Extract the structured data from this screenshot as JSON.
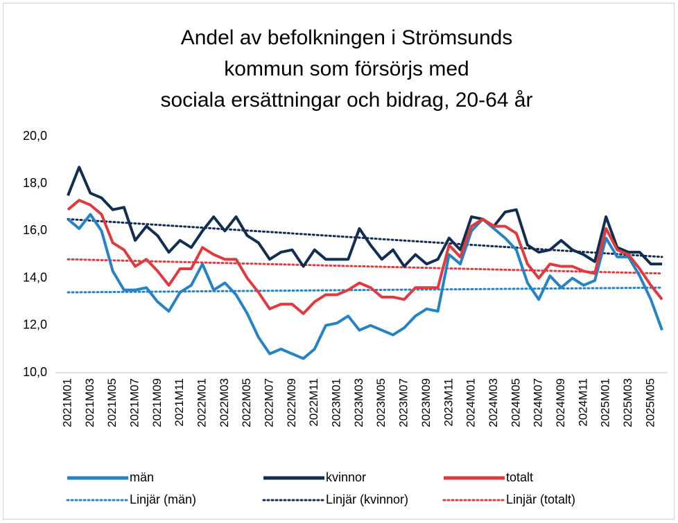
{
  "chart_data": {
    "type": "line",
    "title": [
      "Andel av befolkningen i Strömsunds",
      "kommun som försörjs med",
      "sociala ersättningar och bidrag, 20-64 år"
    ],
    "categories": [
      "2021M01",
      null,
      "2021M03",
      null,
      "2021M05",
      null,
      "2021M07",
      null,
      "2021M09",
      null,
      "2021M11",
      null,
      "2022M01",
      null,
      "2022M03",
      null,
      "2022M05",
      null,
      "2022M07",
      null,
      "2022M09",
      null,
      "2022M11",
      null,
      "2023M01",
      null,
      "2023M03",
      null,
      "2023M05",
      null,
      "2023M07",
      null,
      "2023M09",
      null,
      "2023M11",
      null,
      "2024M01",
      null,
      "2024M03",
      null,
      "2024M05",
      null,
      "2024M07",
      null,
      "2024M09",
      null,
      "2024M11",
      null,
      "2025M01",
      null,
      "2025M03",
      null,
      "2025M05",
      null
    ],
    "series": [
      {
        "name": "män",
        "color": "#2583c5",
        "values": [
          16.5,
          16.1,
          16.7,
          16.0,
          14.3,
          13.5,
          13.5,
          13.6,
          13.0,
          12.6,
          13.4,
          13.7,
          14.6,
          13.5,
          13.8,
          13.3,
          12.5,
          11.5,
          10.8,
          11.0,
          10.8,
          10.6,
          11.0,
          12.0,
          12.1,
          12.4,
          11.8,
          12.0,
          11.8,
          11.6,
          11.9,
          12.4,
          12.7,
          12.6,
          15.0,
          14.6,
          16.0,
          16.5,
          16.1,
          15.7,
          15.2,
          13.8,
          13.1,
          14.1,
          13.6,
          14.0,
          13.7,
          13.9,
          15.7,
          14.9,
          14.9,
          14.1,
          13.1,
          11.8
        ]
      },
      {
        "name": "kvinnor",
        "color": "#112d52",
        "values": [
          17.5,
          18.7,
          17.6,
          17.4,
          16.9,
          17.0,
          15.6,
          16.2,
          15.8,
          15.1,
          15.6,
          15.3,
          16.0,
          16.6,
          16.0,
          16.6,
          15.8,
          15.5,
          14.8,
          15.1,
          15.2,
          14.5,
          15.2,
          14.8,
          14.8,
          14.8,
          16.1,
          15.4,
          14.8,
          15.2,
          14.5,
          15.0,
          14.6,
          14.8,
          15.7,
          15.2,
          16.6,
          16.5,
          16.2,
          16.8,
          16.9,
          15.4,
          15.1,
          15.2,
          15.6,
          15.2,
          15.0,
          14.7,
          16.6,
          15.3,
          15.1,
          15.1,
          14.6,
          14.6
        ]
      },
      {
        "name": "totalt",
        "color": "#e0393e",
        "values": [
          16.9,
          17.3,
          17.1,
          16.7,
          15.5,
          15.2,
          14.5,
          14.8,
          14.3,
          13.7,
          14.4,
          14.4,
          15.3,
          15.0,
          14.8,
          14.8,
          14.0,
          13.4,
          12.7,
          12.9,
          12.9,
          12.5,
          13.0,
          13.3,
          13.3,
          13.5,
          13.8,
          13.6,
          13.2,
          13.2,
          13.1,
          13.6,
          13.6,
          13.6,
          15.4,
          14.9,
          16.2,
          16.5,
          16.2,
          16.2,
          15.9,
          14.6,
          14.0,
          14.6,
          14.5,
          14.5,
          14.3,
          14.2,
          16.1,
          15.2,
          15.0,
          14.4,
          13.7,
          13.1
        ]
      }
    ],
    "trendlines": [
      {
        "name": "Linjär (män)",
        "color": "#2583c5",
        "values": [
          13.4,
          13.6
        ]
      },
      {
        "name": "Linjär (kvinnor)",
        "color": "#112d52",
        "values": [
          16.5,
          14.9
        ]
      },
      {
        "name": "Linjär (totalt)",
        "color": "#e0393e",
        "values": [
          14.8,
          14.2
        ]
      }
    ],
    "ylim": [
      10,
      20
    ],
    "yticks": [
      {
        "value": 10,
        "label": "10,0"
      },
      {
        "value": 12,
        "label": "12,0"
      },
      {
        "value": 14,
        "label": "14,0"
      },
      {
        "value": 16,
        "label": "16,0"
      },
      {
        "value": 18,
        "label": "18,0"
      },
      {
        "value": 20,
        "label": "20,0"
      }
    ],
    "grid": false,
    "legend": "bottom"
  }
}
